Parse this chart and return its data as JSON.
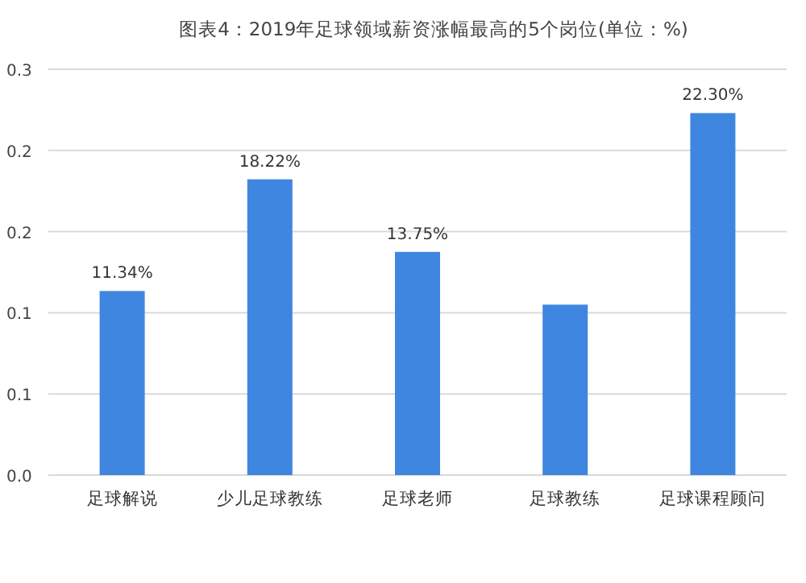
{
  "chart_data": {
    "type": "bar",
    "title": "图表4：2019年足球领域薪资涨幅最高的5个岗位(单位：%)",
    "categories": [
      "足球解说",
      "少儿足球教练",
      "足球老师",
      "足球教练",
      "足球课程顾问"
    ],
    "values": [
      0.1134,
      0.1822,
      0.1375,
      0.105,
      0.223
    ],
    "value_labels": [
      "11.34%",
      "18.22%",
      "13.75%",
      null,
      "22.30%"
    ],
    "color": "#3f86e0",
    "ylim": [
      0,
      0.25
    ],
    "yticks": [
      {
        "value": 0,
        "label": "0.0"
      },
      {
        "value": 0.05,
        "label": "0.1"
      },
      {
        "value": 0.1,
        "label": "0.1"
      },
      {
        "value": 0.15,
        "label": "0.2"
      },
      {
        "value": 0.2,
        "label": "0.2"
      },
      {
        "value": 0.25,
        "label": "0.3"
      }
    ],
    "grid": "y"
  }
}
